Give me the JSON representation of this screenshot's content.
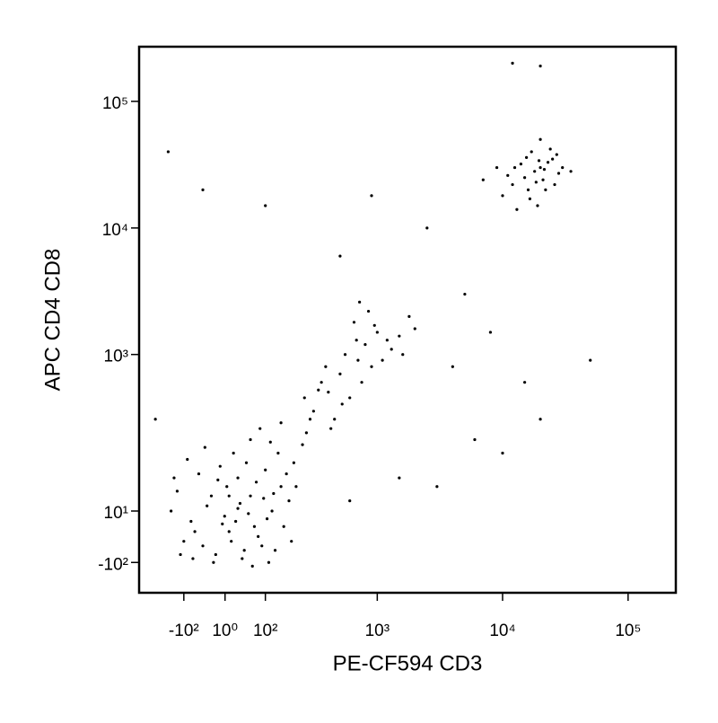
{
  "chart_data": {
    "type": "scatter",
    "x_label": "PE-CF594 CD3",
    "y_label": "APC CD4 CD8",
    "xscale": "biexponential",
    "yscale": "biexponential",
    "color": "#000000",
    "xlim": [
      -280,
      240000
    ],
    "ylim": [
      -200,
      270000
    ],
    "xticks": [
      {
        "value": -100,
        "label": "-10²"
      },
      {
        "value": 1,
        "label": "10⁰"
      },
      {
        "value": 100,
        "label": "10²"
      },
      {
        "value": 1000,
        "label": "10³"
      },
      {
        "value": 10000,
        "label": "10⁴"
      },
      {
        "value": 100000,
        "label": "10⁵"
      }
    ],
    "yticks": [
      {
        "value": 100000,
        "label": "10⁵"
      },
      {
        "value": 10000,
        "label": "10⁴"
      },
      {
        "value": 1000,
        "label": "10³"
      },
      {
        "value": 10,
        "label": "10¹"
      },
      {
        "value": -100,
        "label": "-10²"
      }
    ],
    "x": [
      -40,
      10,
      60,
      -80,
      30,
      0,
      90,
      -120,
      50,
      120,
      -20,
      70,
      150,
      -60,
      20,
      40,
      -100,
      100,
      180,
      -30,
      5,
      80,
      130,
      -70,
      60,
      200,
      -140,
      25,
      -10,
      110,
      35,
      -50,
      75,
      160,
      -90,
      15,
      55,
      240,
      -25,
      95,
      140,
      -110,
      45,
      85,
      170,
      -5,
      65,
      125,
      -45,
      210,
      30,
      -15,
      105,
      -75,
      190,
      10,
      -130,
      115,
      150,
      260,
      300,
      400,
      500,
      700,
      800,
      1000,
      350,
      600,
      900,
      1200,
      450,
      550,
      750,
      1500,
      1800,
      250,
      650,
      1100,
      2000,
      380,
      280,
      520,
      850,
      1300,
      420,
      950,
      330,
      680,
      1600,
      720,
      15000,
      20000,
      18000,
      12000,
      25000,
      22000,
      17000,
      28000,
      10000,
      14000,
      21000,
      19000,
      30000,
      16000,
      24000,
      9000,
      13000,
      26000,
      20000,
      11000,
      23000,
      18500,
      35000,
      15500,
      7000,
      27000,
      16500,
      21500,
      19500,
      12500,
      20000,
      12000,
      -150,
      -50,
      100,
      900,
      2500,
      5000,
      8000,
      4000,
      15000,
      20000,
      10000,
      6000,
      3000,
      1500,
      600,
      -200,
      50000,
      500
    ],
    "values": [
      20,
      -30,
      40,
      -10,
      80,
      0,
      -60,
      50,
      120,
      10,
      -80,
      -20,
      60,
      90,
      150,
      -90,
      -50,
      100,
      30,
      40,
      60,
      -40,
      -70,
      -30,
      200,
      120,
      10,
      -10,
      110,
      -100,
      25,
      -60,
      70,
      -20,
      130,
      -50,
      5,
      180,
      -100,
      35,
      150,
      -80,
      -70,
      250,
      90,
      -15,
      -110,
      45,
      170,
      60,
      15,
      75,
      -5,
      -90,
      -50,
      40,
      80,
      190,
      280,
      230,
      350,
      500,
      700,
      900,
      1200,
      1500,
      600,
      450,
      800,
      1300,
      300,
      1000,
      600,
      1400,
      2000,
      450,
      1800,
      900,
      1600,
      800,
      300,
      400,
      2200,
      1100,
      250,
      1700,
      520,
      1300,
      1000,
      2600,
      25000,
      30000,
      28000,
      22000,
      35000,
      20000,
      40000,
      27000,
      18000,
      32000,
      24000,
      15000,
      30000,
      20000,
      42000,
      30000,
      14000,
      22000,
      50000,
      26000,
      33000,
      23000,
      28000,
      36000,
      24000,
      38000,
      17000,
      29000,
      34000,
      30000,
      190000,
      200000,
      40000,
      20000,
      15000,
      18000,
      10000,
      3000,
      1500,
      800,
      600,
      300,
      150,
      200,
      60,
      80,
      30,
      300,
      900,
      6000
    ]
  }
}
